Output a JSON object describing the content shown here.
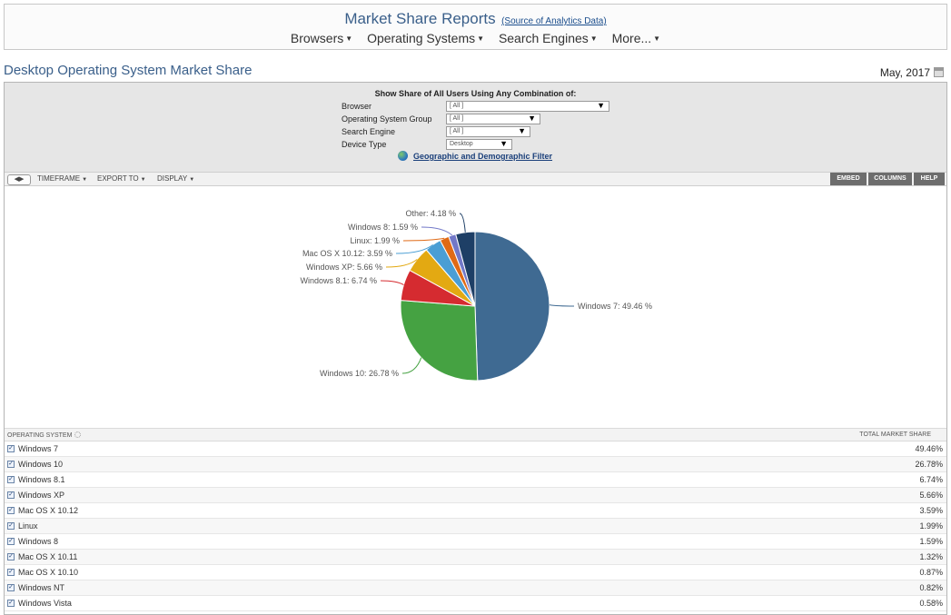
{
  "header": {
    "title": "Market Share Reports",
    "source_link": "(Source of Analytics Data)",
    "nav": [
      {
        "label": "Browsers"
      },
      {
        "label": "Operating Systems"
      },
      {
        "label": "Search Engines"
      },
      {
        "label": "More..."
      }
    ]
  },
  "page": {
    "title": "Desktop Operating System Market Share",
    "date": "May, 2017"
  },
  "filters": {
    "heading": "Show Share of All Users Using Any Combination of:",
    "browser": {
      "label": "Browser",
      "value": "[ All ]"
    },
    "os_group": {
      "label": "Operating System Group",
      "value": "[ All ]"
    },
    "search_engine": {
      "label": "Search Engine",
      "value": "[ All ]"
    },
    "device_type": {
      "label": "Device Type",
      "value": "Desktop"
    },
    "geo_link": "Geographic and Demographic Filter"
  },
  "toolbar": {
    "timeframe": "TIMEFRAME",
    "export": "EXPORT TO",
    "display": "DISPLAY",
    "embed": "EMBED",
    "columns": "COLUMNS",
    "help": "HELP"
  },
  "chart_data": {
    "type": "pie",
    "slices": [
      {
        "label": "Windows 7: 49.46 %",
        "name": "Windows 7",
        "value": 49.46,
        "color": "#3f6a92"
      },
      {
        "label": "Windows 10: 26.78 %",
        "name": "Windows 10",
        "value": 26.78,
        "color": "#45a242"
      },
      {
        "label": "Windows 8.1: 6.74 %",
        "name": "Windows 8.1",
        "value": 6.74,
        "color": "#d52b30"
      },
      {
        "label": "Windows XP: 5.66 %",
        "name": "Windows XP",
        "value": 5.66,
        "color": "#e3a912"
      },
      {
        "label": "Mac OS X 10.12: 3.59 %",
        "name": "Mac OS X 10.12",
        "value": 3.59,
        "color": "#4a9ed4"
      },
      {
        "label": "Linux: 1.99 %",
        "name": "Linux",
        "value": 1.99,
        "color": "#e06a16"
      },
      {
        "label": "Windows 8: 1.59 %",
        "name": "Windows 8",
        "value": 1.59,
        "color": "#7278c8"
      },
      {
        "label": "Other: 4.18 %",
        "name": "Other",
        "value": 4.18,
        "color": "#1e3f66"
      }
    ]
  },
  "table": {
    "col_os": "OPERATING SYSTEM",
    "col_share": "TOTAL MARKET SHARE",
    "rows": [
      {
        "name": "Windows 7",
        "value": "49.46%"
      },
      {
        "name": "Windows 10",
        "value": "26.78%"
      },
      {
        "name": "Windows 8.1",
        "value": "6.74%"
      },
      {
        "name": "Windows XP",
        "value": "5.66%"
      },
      {
        "name": "Mac OS X 10.12",
        "value": "3.59%"
      },
      {
        "name": "Linux",
        "value": "1.99%"
      },
      {
        "name": "Windows 8",
        "value": "1.59%"
      },
      {
        "name": "Mac OS X 10.11",
        "value": "1.32%"
      },
      {
        "name": "Mac OS X 10.10",
        "value": "0.87%"
      },
      {
        "name": "Windows NT",
        "value": "0.82%"
      },
      {
        "name": "Windows Vista",
        "value": "0.58%"
      }
    ]
  }
}
